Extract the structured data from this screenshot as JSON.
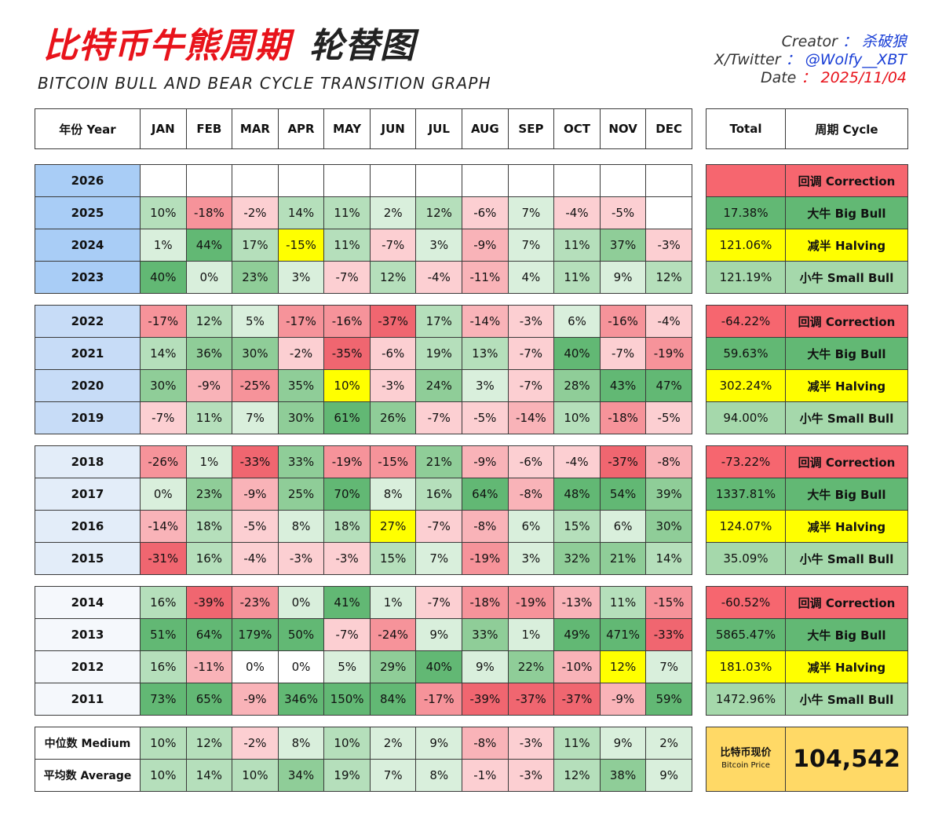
{
  "title": {
    "cn_red": "比特币牛熊周期",
    "cn_black": "轮替图",
    "en": "BITCOIN BULL AND BEAR CYCLE TRANSITION GRAPH"
  },
  "meta": {
    "creator_label": "Creator",
    "creator_value": "杀破狼",
    "twitter_label": "X/Twitter",
    "twitter_value": "@Wolfy__XBT",
    "date_label": "Date",
    "date_value": "2025/11/04",
    "sep": "："
  },
  "colors": {
    "year_dark": "#a9cdf6",
    "year_mid": "#c7dcf7",
    "year_light": "#e3edf9",
    "year_white": "#f5f8fc",
    "halving_yellow": "#ffff00",
    "price_gold": "#ffd966",
    "neutral": "#ffffff"
  },
  "chart_data": {
    "type": "table",
    "header": {
      "year_label": "年份 Year",
      "months": [
        "JAN",
        "FEB",
        "MAR",
        "APR",
        "MAY",
        "JUN",
        "JUL",
        "AUG",
        "SEP",
        "OCT",
        "NOV",
        "DEC"
      ],
      "total_label": "Total",
      "cycle_label": "周期 Cycle"
    },
    "groups": [
      {
        "shade": "year_dark",
        "rows": [
          {
            "year": "2026",
            "months": [
              "",
              "",
              "",
              "",
              "",
              "",
              "",
              "",
              "",
              "",
              "",
              ""
            ],
            "total": "",
            "cycle": "回调 Correction",
            "cycle_type": "correction",
            "highlight": -1,
            "total_neg": true
          },
          {
            "year": "2025",
            "months": [
              "10%",
              "-18%",
              "-2%",
              "14%",
              "11%",
              "2%",
              "12%",
              "-6%",
              "7%",
              "-4%",
              "-5%",
              ""
            ],
            "total": "17.38%",
            "cycle": "大牛 Big Bull",
            "cycle_type": "big",
            "highlight": -1
          },
          {
            "year": "2024",
            "months": [
              "1%",
              "44%",
              "17%",
              "-15%",
              "11%",
              "-7%",
              "3%",
              "-9%",
              "7%",
              "11%",
              "37%",
              "-3%"
            ],
            "total": "121.06%",
            "cycle": "减半 Halving",
            "cycle_type": "halving",
            "highlight": 3
          },
          {
            "year": "2023",
            "months": [
              "40%",
              "0%",
              "23%",
              "3%",
              "-7%",
              "12%",
              "-4%",
              "-11%",
              "4%",
              "11%",
              "9%",
              "12%"
            ],
            "total": "121.19%",
            "cycle": "小牛 Small Bull",
            "cycle_type": "small",
            "highlight": -1
          }
        ]
      },
      {
        "shade": "year_mid",
        "rows": [
          {
            "year": "2022",
            "months": [
              "-17%",
              "12%",
              "5%",
              "-17%",
              "-16%",
              "-37%",
              "17%",
              "-14%",
              "-3%",
              "6%",
              "-16%",
              "-4%"
            ],
            "total": "-64.22%",
            "cycle": "回调 Correction",
            "cycle_type": "correction",
            "highlight": -1
          },
          {
            "year": "2021",
            "months": [
              "14%",
              "36%",
              "30%",
              "-2%",
              "-35%",
              "-6%",
              "19%",
              "13%",
              "-7%",
              "40%",
              "-7%",
              "-19%"
            ],
            "total": "59.63%",
            "cycle": "大牛 Big Bull",
            "cycle_type": "big",
            "highlight": -1
          },
          {
            "year": "2020",
            "months": [
              "30%",
              "-9%",
              "-25%",
              "35%",
              "10%",
              "-3%",
              "24%",
              "3%",
              "-7%",
              "28%",
              "43%",
              "47%"
            ],
            "total": "302.24%",
            "cycle": "减半 Halving",
            "cycle_type": "halving",
            "highlight": 4
          },
          {
            "year": "2019",
            "months": [
              "-7%",
              "11%",
              "7%",
              "30%",
              "61%",
              "26%",
              "-7%",
              "-5%",
              "-14%",
              "10%",
              "-18%",
              "-5%"
            ],
            "total": "94.00%",
            "cycle": "小牛 Small Bull",
            "cycle_type": "small",
            "highlight": -1
          }
        ]
      },
      {
        "shade": "year_light",
        "rows": [
          {
            "year": "2018",
            "months": [
              "-26%",
              "1%",
              "-33%",
              "33%",
              "-19%",
              "-15%",
              "21%",
              "-9%",
              "-6%",
              "-4%",
              "-37%",
              "-8%"
            ],
            "total": "-73.22%",
            "cycle": "回调 Correction",
            "cycle_type": "correction",
            "highlight": -1
          },
          {
            "year": "2017",
            "months": [
              "0%",
              "23%",
              "-9%",
              "25%",
              "70%",
              "8%",
              "16%",
              "64%",
              "-8%",
              "48%",
              "54%",
              "39%"
            ],
            "total": "1337.81%",
            "cycle": "大牛 Big Bull",
            "cycle_type": "big",
            "highlight": -1
          },
          {
            "year": "2016",
            "months": [
              "-14%",
              "18%",
              "-5%",
              "8%",
              "18%",
              "27%",
              "-7%",
              "-8%",
              "6%",
              "15%",
              "6%",
              "30%"
            ],
            "total": "124.07%",
            "cycle": "减半 Halving",
            "cycle_type": "halving",
            "highlight": 5
          },
          {
            "year": "2015",
            "months": [
              "-31%",
              "16%",
              "-4%",
              "-3%",
              "-3%",
              "15%",
              "7%",
              "-19%",
              "3%",
              "32%",
              "21%",
              "14%"
            ],
            "total": "35.09%",
            "cycle": "小牛 Small Bull",
            "cycle_type": "small",
            "highlight": -1
          }
        ]
      },
      {
        "shade": "year_white",
        "rows": [
          {
            "year": "2014",
            "months": [
              "16%",
              "-39%",
              "-23%",
              "0%",
              "41%",
              "1%",
              "-7%",
              "-18%",
              "-19%",
              "-13%",
              "11%",
              "-15%"
            ],
            "total": "-60.52%",
            "cycle": "回调 Correction",
            "cycle_type": "correction",
            "highlight": -1
          },
          {
            "year": "2013",
            "months": [
              "51%",
              "64%",
              "179%",
              "50%",
              "-7%",
              "-24%",
              "9%",
              "33%",
              "1%",
              "49%",
              "471%",
              "-33%"
            ],
            "total": "5865.47%",
            "cycle": "大牛 Big Bull",
            "cycle_type": "big",
            "highlight": -1
          },
          {
            "year": "2012",
            "months": [
              "16%",
              "-11%",
              "0%",
              "0%",
              "5%",
              "29%",
              "40%",
              "9%",
              "22%",
              "-10%",
              "12%",
              "7%"
            ],
            "total": "181.03%",
            "cycle": "减半 Halving",
            "cycle_type": "halving",
            "highlight": 10
          },
          {
            "year": "2011",
            "months": [
              "73%",
              "65%",
              "-9%",
              "346%",
              "150%",
              "84%",
              "-17%",
              "-39%",
              "-37%",
              "-37%",
              "-9%",
              "59%"
            ],
            "total": "1472.96%",
            "cycle": "小牛 Small Bull",
            "cycle_type": "small",
            "highlight": -1
          }
        ]
      }
    ],
    "stats": [
      {
        "label": "中位数 Medium",
        "months": [
          "10%",
          "12%",
          "-2%",
          "8%",
          "10%",
          "2%",
          "9%",
          "-8%",
          "-3%",
          "11%",
          "9%",
          "2%"
        ]
      },
      {
        "label": "平均数 Average",
        "months": [
          "10%",
          "14%",
          "10%",
          "34%",
          "19%",
          "7%",
          "8%",
          "-1%",
          "-3%",
          "12%",
          "38%",
          "9%"
        ]
      }
    ],
    "price": {
      "label_cn": "比特币现价",
      "label_en": "Bitcoin Price",
      "value": "104,542"
    }
  }
}
